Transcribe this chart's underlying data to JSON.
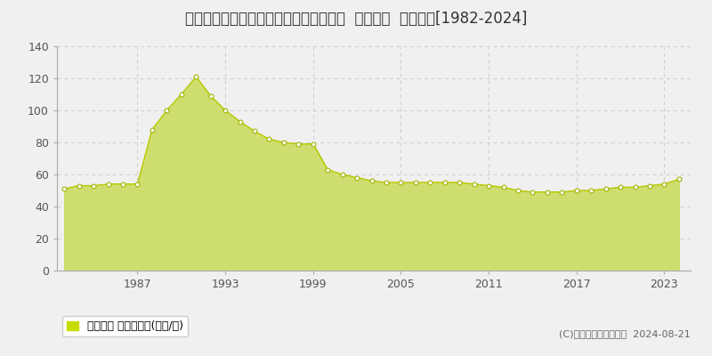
{
  "title": "埼玉県川越市砂新田２丁目１９番２１外  地価公示  地価推移[1982-2024]",
  "years": [
    1982,
    1983,
    1984,
    1985,
    1986,
    1987,
    1988,
    1989,
    1990,
    1991,
    1992,
    1993,
    1994,
    1995,
    1996,
    1997,
    1998,
    1999,
    2000,
    2001,
    2002,
    2003,
    2004,
    2005,
    2006,
    2007,
    2008,
    2009,
    2010,
    2011,
    2012,
    2013,
    2014,
    2015,
    2016,
    2017,
    2018,
    2019,
    2020,
    2021,
    2022,
    2023,
    2024
  ],
  "values": [
    51,
    53,
    53,
    54,
    54,
    54,
    88,
    100,
    110,
    121,
    109,
    100,
    93,
    87,
    82,
    80,
    79,
    79,
    63,
    60,
    58,
    56,
    55,
    55,
    55,
    55,
    55,
    55,
    54,
    53,
    52,
    50,
    49,
    49,
    49,
    50,
    50,
    51,
    52,
    52,
    53,
    54,
    57
  ],
  "fill_color": "#cede6e",
  "line_color": "#b8c800",
  "marker_color": "#ffffff",
  "marker_edge_color": "#a0b400",
  "background_color": "#f0f0f0",
  "plot_bg_color": "#f0f0f0",
  "grid_color": "#cccccc",
  "ylabel_ticks": [
    0,
    20,
    40,
    60,
    80,
    100,
    120,
    140
  ],
  "xtick_years": [
    1987,
    1993,
    1999,
    2005,
    2011,
    2017,
    2023
  ],
  "xlim": [
    1981.5,
    2024.8
  ],
  "ylim": [
    0,
    140
  ],
  "legend_label": "地価公示 平均坪単価(万円/坪)",
  "copyright_text": "(C)土地価格ドットコム  2024-08-21",
  "title_fontsize": 12,
  "tick_fontsize": 9,
  "legend_fontsize": 9,
  "copyright_fontsize": 8,
  "legend_marker_color": "#c8dc00"
}
